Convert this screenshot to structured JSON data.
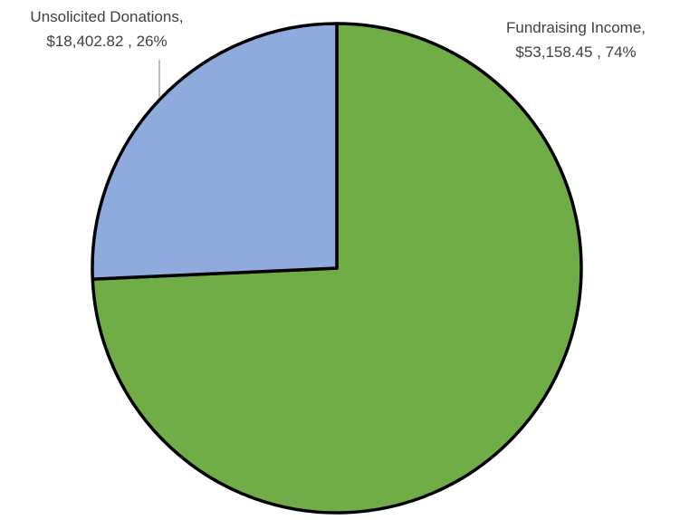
{
  "chart_data": {
    "type": "pie",
    "title": "",
    "start_angle_deg": 0,
    "direction": "clockwise",
    "slices": [
      {
        "name": "Fundraising Income",
        "value": 53158.45,
        "value_label": "$53,158.45",
        "percent_label": "74%",
        "color": "#70ad47"
      },
      {
        "name": "Unsolicited Donations",
        "value": 18402.82,
        "value_label": "$18,402.82",
        "percent_label": "26%",
        "color": "#8faadc"
      }
    ],
    "legend": "none",
    "data_labels": "outside-with-leader",
    "slice_border_color": "#000000"
  }
}
